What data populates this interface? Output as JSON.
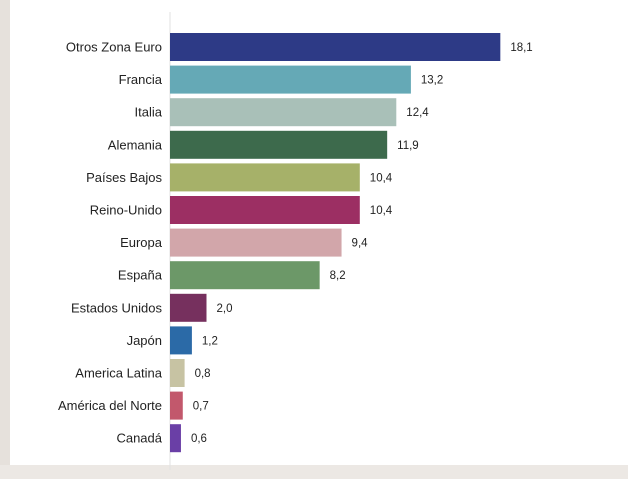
{
  "chart_data": {
    "type": "bar",
    "orientation": "horizontal",
    "title": "",
    "xlabel": "",
    "ylabel": "",
    "grid": false,
    "xlim": [
      0,
      20
    ],
    "categories": [
      "Otros Zona Euro",
      "Francia",
      "Italia",
      "Alemania",
      "Países Bajos",
      "Reino-Unido",
      "Europa",
      "España",
      "Estados Unidos",
      "Japón",
      "America Latina",
      "América del Norte",
      "Canadá"
    ],
    "values": [
      18.1,
      13.2,
      12.4,
      11.9,
      10.4,
      10.4,
      9.4,
      8.2,
      2.0,
      1.2,
      0.8,
      0.7,
      0.6
    ],
    "value_labels": [
      "18,1",
      "13,2",
      "12,4",
      "11,9",
      "10,4",
      "10,4",
      "9,4",
      "8,2",
      "2,0",
      "1,2",
      "0,8",
      "0,7",
      "0,6"
    ],
    "colors": [
      "#2d3a86",
      "#65a9b6",
      "#a9c0b8",
      "#3d6a4c",
      "#a6b169",
      "#9c2f63",
      "#d2a6aa",
      "#6c9868",
      "#76305e",
      "#2b6aa7",
      "#c7c3a3",
      "#c2586c",
      "#6a3fa6"
    ]
  }
}
